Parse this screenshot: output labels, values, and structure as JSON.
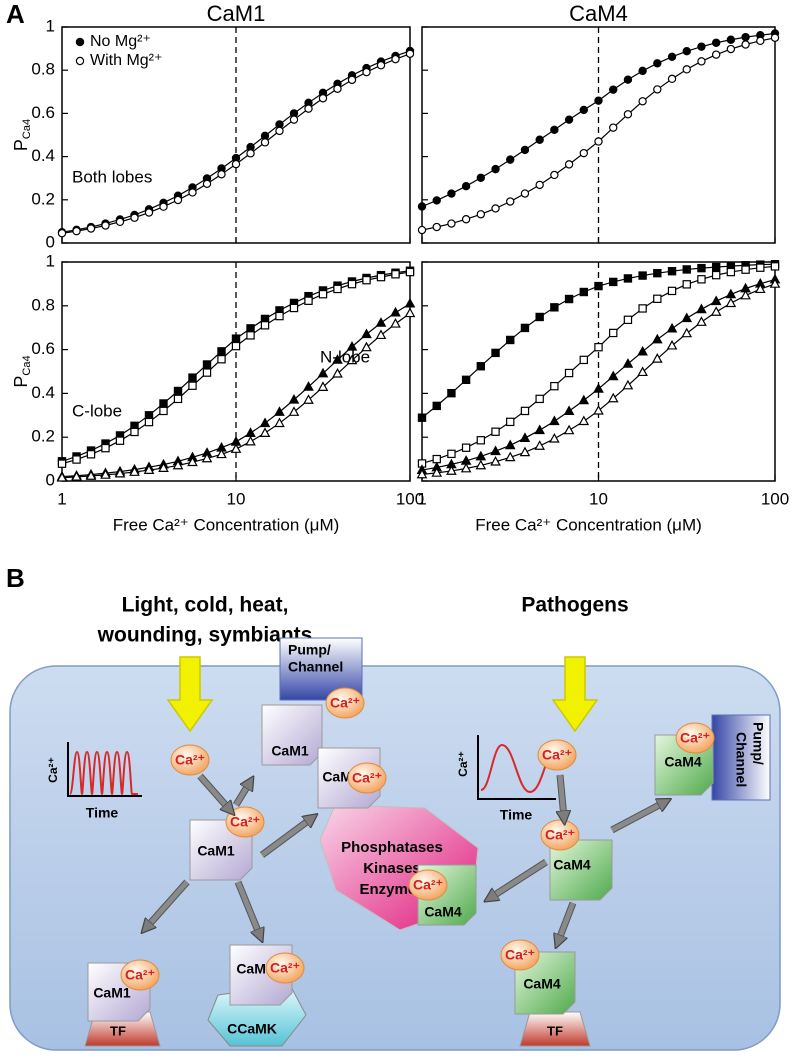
{
  "panel_labels": [
    "A",
    "B"
  ],
  "chart_data": [
    {
      "type": "line",
      "title": "CaM1",
      "ylabel": [
        "P",
        "Ca4"
      ],
      "log_x": true,
      "xlim": [
        1,
        100
      ],
      "xticks": [
        1,
        10,
        100
      ],
      "ylim": [
        0,
        1
      ],
      "yticks": [
        0,
        0.2,
        0.4,
        0.6,
        0.8,
        1
      ],
      "vline": 10,
      "legend": "upper left",
      "annotations": [
        "Both lobes"
      ],
      "x": [
        1,
        1.212,
        1.468,
        1.778,
        2.154,
        2.61,
        3.162,
        3.831,
        4.642,
        5.623,
        6.813,
        8.254,
        10,
        12.12,
        14.68,
        17.78,
        21.54,
        26.1,
        31.62,
        38.31,
        46.42,
        56.23,
        68.13,
        82.54,
        100
      ],
      "series": [
        {
          "name": "No Mg²⁺",
          "color": "#000000",
          "marker": "circle",
          "marker_fill": "#000000",
          "values": [
            0.05,
            0.061,
            0.074,
            0.09,
            0.109,
            0.13,
            0.156,
            0.186,
            0.219,
            0.257,
            0.299,
            0.345,
            0.393,
            0.444,
            0.496,
            0.549,
            0.6,
            0.649,
            0.695,
            0.737,
            0.776,
            0.81,
            0.84,
            0.866,
            0.889
          ]
        },
        {
          "name": "With Mg²⁺",
          "color": "#000000",
          "marker": "circle",
          "marker_fill": "#ffffff",
          "values": [
            0.045,
            0.055,
            0.067,
            0.081,
            0.098,
            0.117,
            0.141,
            0.168,
            0.199,
            0.234,
            0.274,
            0.318,
            0.365,
            0.415,
            0.466,
            0.519,
            0.571,
            0.622,
            0.67,
            0.714,
            0.755,
            0.791,
            0.823,
            0.851,
            0.876
          ]
        }
      ]
    },
    {
      "type": "line",
      "title": "CaM4",
      "log_x": true,
      "xlim": [
        1,
        100
      ],
      "xticks": [
        1,
        10,
        100
      ],
      "ylim": [
        0,
        1
      ],
      "yticks": [
        0,
        0.2,
        0.4,
        0.6,
        0.8,
        1
      ],
      "vline": 10,
      "x": [
        1,
        1.212,
        1.468,
        1.778,
        2.154,
        2.61,
        3.162,
        3.831,
        4.642,
        5.623,
        6.813,
        8.254,
        10,
        12.12,
        14.68,
        17.78,
        21.54,
        26.1,
        31.62,
        38.31,
        46.42,
        56.23,
        68.13,
        82.54,
        100
      ],
      "series": [
        {
          "color": "#000000",
          "marker": "circle",
          "marker_fill": "#000000",
          "values": [
            0.169,
            0.197,
            0.229,
            0.263,
            0.302,
            0.342,
            0.386,
            0.431,
            0.478,
            0.524,
            0.571,
            0.616,
            0.659,
            0.71,
            0.756,
            0.797,
            0.832,
            0.862,
            0.888,
            0.909,
            0.927,
            0.941,
            0.953,
            0.962,
            0.97
          ]
        },
        {
          "color": "#000000",
          "marker": "circle",
          "marker_fill": "#ffffff",
          "values": [
            0.06,
            0.074,
            0.09,
            0.11,
            0.133,
            0.16,
            0.192,
            0.229,
            0.269,
            0.315,
            0.364,
            0.416,
            0.47,
            0.534,
            0.596,
            0.656,
            0.711,
            0.76,
            0.804,
            0.841,
            0.872,
            0.898,
            0.919,
            0.936,
            0.95
          ]
        }
      ]
    },
    {
      "type": "line",
      "ylabel": [
        "P",
        "Ca4"
      ],
      "xlabel": "Free Ca²⁺ Concentration (μM)",
      "log_x": true,
      "xlim": [
        1,
        100
      ],
      "xticks": [
        1,
        10,
        100
      ],
      "ylim": [
        0,
        1
      ],
      "yticks": [
        0,
        0.2,
        0.4,
        0.6,
        0.8,
        1
      ],
      "vline": 10,
      "annotations": [
        "C-lobe",
        "N-lobe"
      ],
      "x": [
        1,
        1.212,
        1.468,
        1.778,
        2.154,
        2.61,
        3.162,
        3.831,
        4.642,
        5.623,
        6.813,
        8.254,
        10,
        12.12,
        14.68,
        17.78,
        21.54,
        26.1,
        31.62,
        38.31,
        46.42,
        56.23,
        68.13,
        82.54,
        100
      ],
      "series": [
        {
          "color": "#000000",
          "marker": "square",
          "marker_fill": "#000000",
          "values": [
            0.09,
            0.112,
            0.139,
            0.171,
            0.208,
            0.252,
            0.3,
            0.354,
            0.411,
            0.472,
            0.532,
            0.592,
            0.65,
            0.697,
            0.74,
            0.779,
            0.813,
            0.844,
            0.87,
            0.892,
            0.911,
            0.927,
            0.94,
            0.951,
            0.96
          ]
        },
        {
          "color": "#000000",
          "marker": "square",
          "marker_fill": "#ffffff",
          "values": [
            0.079,
            0.098,
            0.122,
            0.15,
            0.184,
            0.224,
            0.269,
            0.32,
            0.375,
            0.435,
            0.495,
            0.556,
            0.616,
            0.665,
            0.711,
            0.753,
            0.79,
            0.823,
            0.853,
            0.877,
            0.899,
            0.917,
            0.931,
            0.944,
            0.954
          ]
        },
        {
          "color": "#000000",
          "marker": "triangle",
          "marker_fill": "#000000",
          "values": [
            0.02,
            0.024,
            0.029,
            0.036,
            0.043,
            0.052,
            0.063,
            0.075,
            0.09,
            0.108,
            0.128,
            0.152,
            0.179,
            0.219,
            0.264,
            0.315,
            0.371,
            0.43,
            0.491,
            0.553,
            0.613,
            0.67,
            0.722,
            0.769,
            0.81
          ]
        },
        {
          "color": "#000000",
          "marker": "triangle",
          "marker_fill": "#ffffff",
          "values": [
            0.015,
            0.019,
            0.023,
            0.028,
            0.034,
            0.041,
            0.05,
            0.059,
            0.071,
            0.086,
            0.103,
            0.122,
            0.146,
            0.18,
            0.219,
            0.264,
            0.315,
            0.37,
            0.429,
            0.49,
            0.551,
            0.61,
            0.666,
            0.718,
            0.766
          ]
        }
      ]
    },
    {
      "type": "line",
      "xlabel": "Free Ca²⁺ Concentration (μM)",
      "log_x": true,
      "xlim": [
        1,
        100
      ],
      "xticks": [
        1,
        10,
        100
      ],
      "ylim": [
        0,
        1
      ],
      "yticks": [
        0,
        0.2,
        0.4,
        0.6,
        0.8,
        1
      ],
      "vline": 10,
      "x": [
        1,
        1.212,
        1.468,
        1.778,
        2.154,
        2.61,
        3.162,
        3.831,
        4.642,
        5.623,
        6.813,
        8.254,
        10,
        12.12,
        14.68,
        17.78,
        21.54,
        26.1,
        31.62,
        38.31,
        46.42,
        56.23,
        68.13,
        82.54,
        100
      ],
      "series": [
        {
          "color": "#000000",
          "marker": "square",
          "marker_fill": "#000000",
          "values": [
            0.289,
            0.343,
            0.401,
            0.462,
            0.524,
            0.585,
            0.644,
            0.699,
            0.749,
            0.793,
            0.831,
            0.863,
            0.89,
            0.909,
            0.925,
            0.938,
            0.949,
            0.958,
            0.966,
            0.972,
            0.977,
            0.981,
            0.985,
            0.988,
            0.99
          ]
        },
        {
          "color": "#000000",
          "marker": "square",
          "marker_fill": "#ffffff",
          "values": [
            0.08,
            0.1,
            0.124,
            0.152,
            0.186,
            0.225,
            0.27,
            0.32,
            0.375,
            0.433,
            0.493,
            0.553,
            0.611,
            0.676,
            0.736,
            0.788,
            0.832,
            0.868,
            0.898,
            0.921,
            0.94,
            0.954,
            0.965,
            0.974,
            0.98
          ]
        },
        {
          "color": "#000000",
          "marker": "triangle",
          "marker_fill": "#000000",
          "values": [
            0.05,
            0.062,
            0.076,
            0.092,
            0.112,
            0.136,
            0.163,
            0.196,
            0.232,
            0.273,
            0.319,
            0.368,
            0.421,
            0.478,
            0.535,
            0.591,
            0.646,
            0.696,
            0.743,
            0.784,
            0.821,
            0.852,
            0.879,
            0.901,
            0.92
          ]
        },
        {
          "color": "#000000",
          "marker": "triangle",
          "marker_fill": "#ffffff",
          "values": [
            0.03,
            0.037,
            0.046,
            0.057,
            0.071,
            0.088,
            0.108,
            0.131,
            0.16,
            0.193,
            0.231,
            0.273,
            0.321,
            0.377,
            0.436,
            0.497,
            0.558,
            0.618,
            0.674,
            0.726,
            0.772,
            0.812,
            0.847,
            0.876,
            0.9
          ]
        }
      ]
    }
  ],
  "diagram": {
    "stimuli": [
      "Light, cold, heat,",
      "wounding, symbiants"
    ],
    "pathogens": "Pathogens",
    "calcium": "Ca²⁺",
    "time": "Time",
    "pump": [
      "Pump/",
      "Channel"
    ],
    "cam1": "CaM1",
    "cam4": "CaM4",
    "enzymes": [
      "Phosphatases",
      "Kinases",
      "Enzymes"
    ],
    "tf": "TF",
    "ccamk": "CCaMK"
  }
}
